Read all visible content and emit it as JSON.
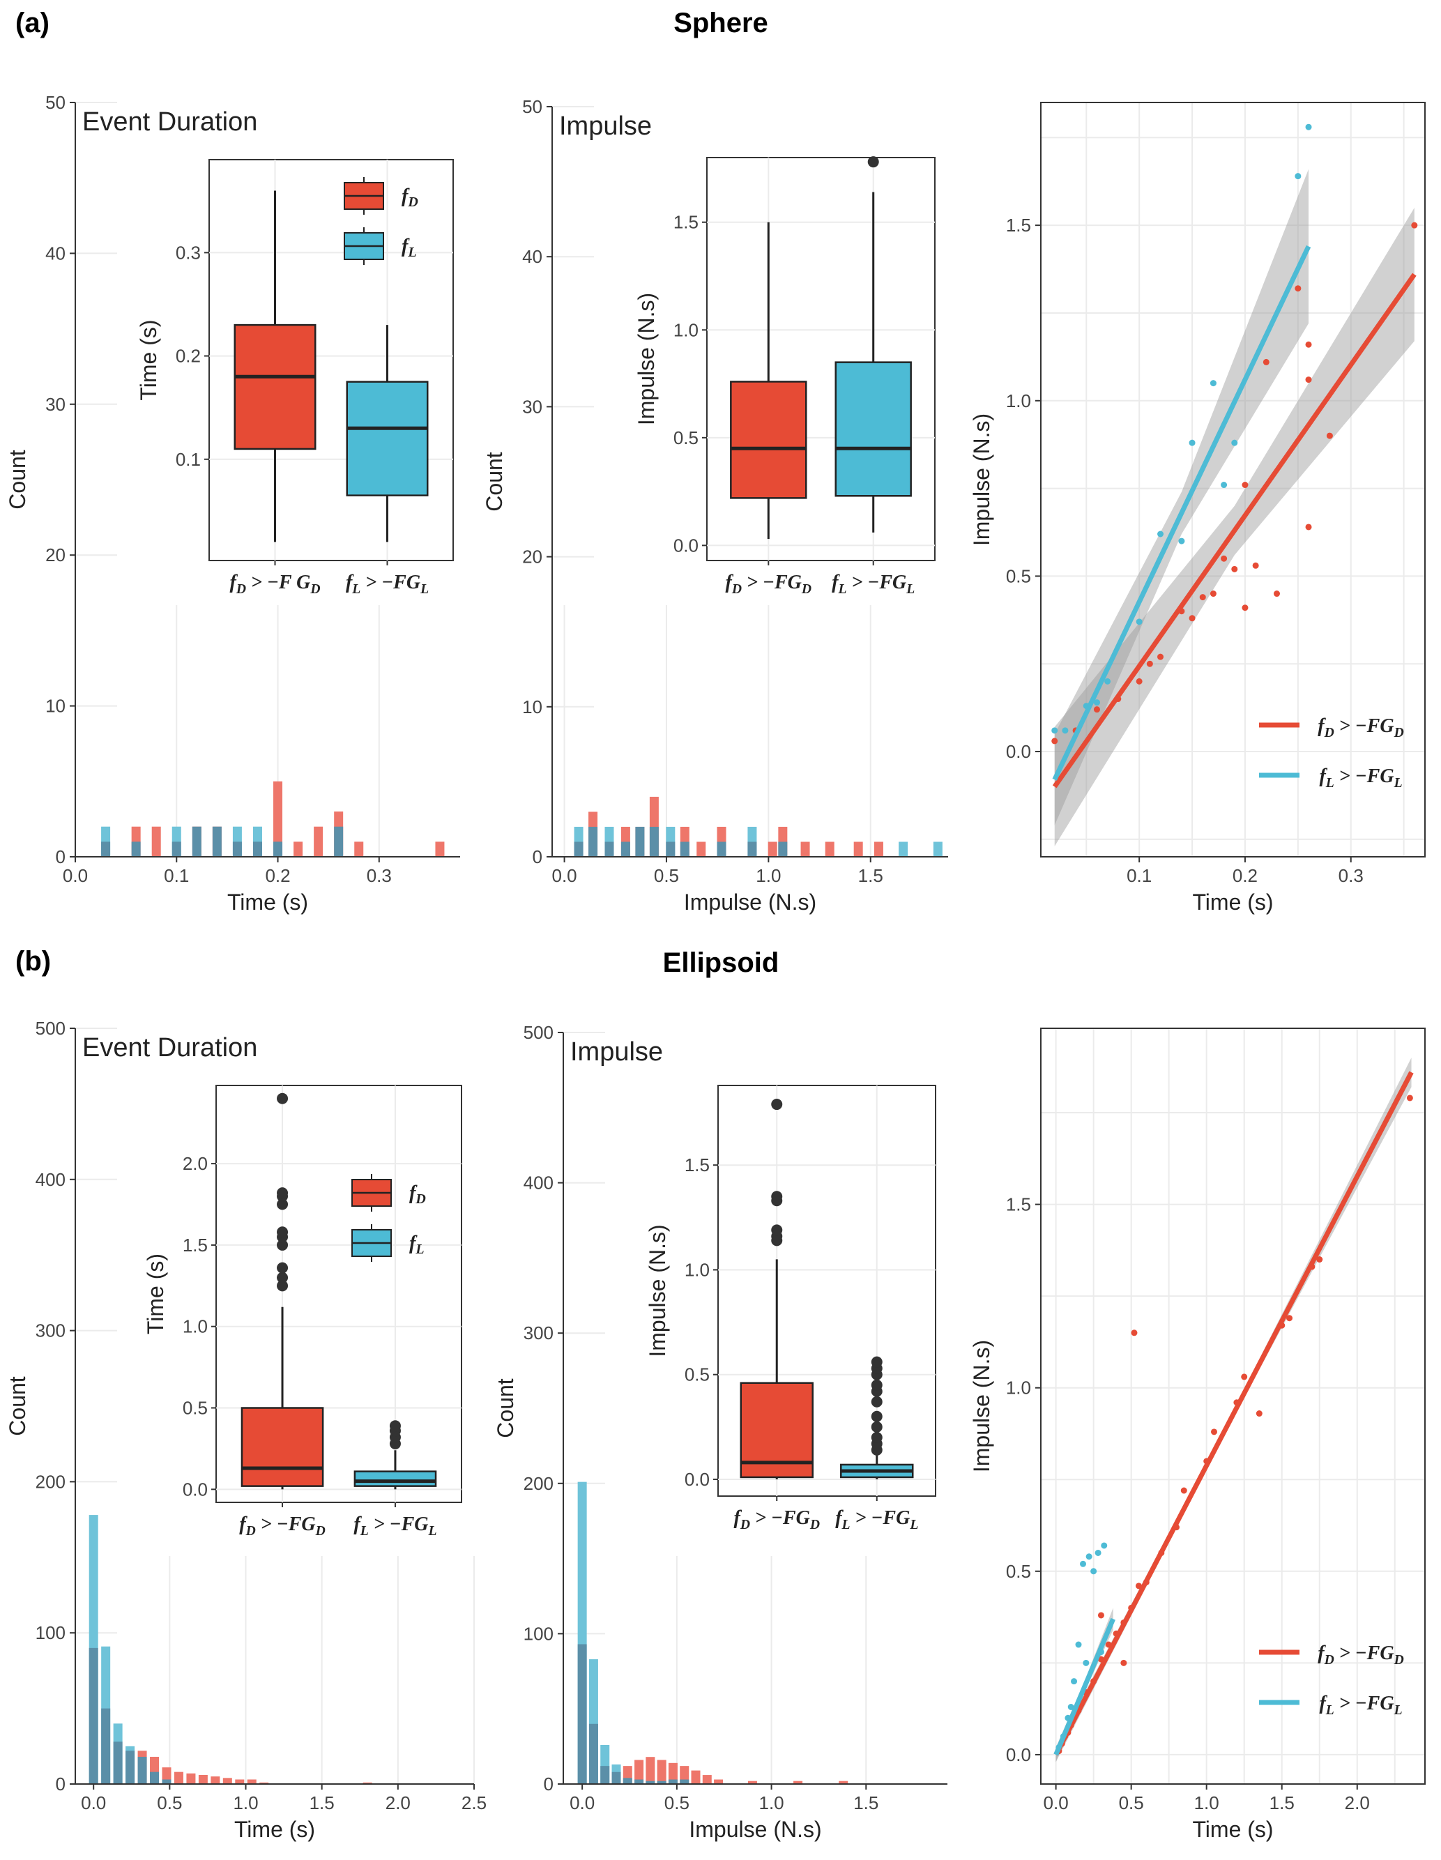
{
  "panels": [
    {
      "label": "(a)",
      "title": "Sphere",
      "histograms": [
        {
          "inset_title": "Event Duration",
          "xlabel": "Time (s)",
          "ylabel": "Count",
          "xticks": [
            "0.0",
            "0.1",
            "0.2",
            "0.3"
          ],
          "yticks": [
            "0",
            "10",
            "20",
            "30",
            "40",
            "50"
          ]
        },
        {
          "inset_title": "Impulse",
          "xlabel": "Impulse (N.s)",
          "ylabel": "Count",
          "xticks": [
            "0.0",
            "0.5",
            "1.0",
            "1.5"
          ],
          "yticks": [
            "0",
            "10",
            "20",
            "30",
            "40",
            "50"
          ]
        }
      ],
      "boxplots": [
        {
          "ylabel": "Time (s)",
          "yticks": [
            "0.1",
            "0.2",
            "0.3"
          ],
          "legend": [
            "f_D",
            "f_L"
          ],
          "categories": [
            "fD>−F GD",
            "fL>−FGL"
          ]
        },
        {
          "ylabel": "Impulse (N.s)",
          "yticks": [
            "0.0",
            "0.5",
            "1.0",
            "1.5"
          ],
          "categories": [
            "fD>−FGD",
            "fL>−FGL"
          ]
        }
      ],
      "scatter": {
        "xlabel": "Time (s)",
        "ylabel": "Impulse (N.s)",
        "xticks": [
          "0.1",
          "0.2",
          "0.3"
        ],
        "yticks": [
          "0.0",
          "0.5",
          "1.0",
          "1.5"
        ],
        "legend": [
          "fD>−FGD",
          "fL>−FGL"
        ]
      }
    },
    {
      "label": "(b)",
      "title": "Ellipsoid",
      "histograms": [
        {
          "inset_title": "Event Duration",
          "xlabel": "Time (s)",
          "ylabel": "Count",
          "xticks": [
            "0.0",
            "0.5",
            "1.0",
            "1.5",
            "2.0",
            "2.5"
          ],
          "yticks": [
            "0",
            "100",
            "200",
            "300",
            "400",
            "500"
          ]
        },
        {
          "inset_title": "Impulse",
          "xlabel": "Impulse (N.s)",
          "ylabel": "Count",
          "xticks": [
            "0.0",
            "0.5",
            "1.0",
            "1.5"
          ],
          "yticks": [
            "0",
            "100",
            "200",
            "300",
            "400",
            "500"
          ]
        }
      ],
      "boxplots": [
        {
          "ylabel": "Time (s)",
          "yticks": [
            "0.0",
            "0.5",
            "1.0",
            "1.5",
            "2.0"
          ],
          "legend": [
            "f_D",
            "f_L"
          ],
          "categories": [
            "fD>−FGD",
            "fL>−FGL"
          ]
        },
        {
          "ylabel": "Impulse (N.s)",
          "yticks": [
            "0.0",
            "0.5",
            "1.0",
            "1.5"
          ],
          "categories": [
            "fD>−FGD",
            "fL>−FGL"
          ]
        }
      ],
      "scatter": {
        "xlabel": "Time (s)",
        "ylabel": "Impulse (N.s)",
        "xticks": [
          "0.0",
          "0.5",
          "1.0",
          "1.5",
          "2.0"
        ],
        "yticks": [
          "0.0",
          "0.5",
          "1.0",
          "1.5"
        ],
        "legend": [
          "fD>−FGD",
          "fL>−FGL"
        ]
      }
    }
  ],
  "colors": {
    "drag": "#e64b35",
    "lift": "#4dbbd5",
    "drag_hist": "#ee766a",
    "lift_hist": "#6fc3d9",
    "overlap": "#5b8fa8",
    "grid": "#ebebeb",
    "band": "#999999"
  },
  "chart_data": [
    {
      "type": "bar",
      "panel": "(a) Sphere",
      "name": "Event Duration histogram",
      "xlabel": "Time (s)",
      "ylabel": "Count",
      "xlim": [
        0,
        0.38
      ],
      "ylim": [
        0,
        50
      ],
      "x": [
        0.03,
        0.06,
        0.08,
        0.1,
        0.12,
        0.14,
        0.16,
        0.18,
        0.2,
        0.22,
        0.24,
        0.26,
        0.28,
        0.36
      ],
      "series": [
        {
          "name": "fD>−FGD",
          "values": [
            1,
            2,
            2,
            1,
            2,
            2,
            1,
            1,
            5,
            1,
            2,
            3,
            1,
            1
          ]
        },
        {
          "name": "fL>−FGL",
          "values": [
            2,
            1,
            0,
            2,
            2,
            2,
            2,
            2,
            1,
            0,
            0,
            2,
            0,
            0
          ]
        }
      ]
    },
    {
      "type": "box",
      "panel": "(a) Sphere",
      "name": "Event Duration boxplot",
      "ylabel": "Time (s)",
      "categories": [
        "fD>−FGD",
        "fL>−FGL"
      ],
      "stats": [
        {
          "min": 0.02,
          "q1": 0.11,
          "median": 0.18,
          "q3": 0.23,
          "max": 0.36,
          "outliers": []
        },
        {
          "min": 0.02,
          "q1": 0.065,
          "median": 0.13,
          "q3": 0.175,
          "max": 0.23,
          "outliers": []
        }
      ]
    },
    {
      "type": "bar",
      "panel": "(a) Sphere",
      "name": "Impulse histogram",
      "xlabel": "Impulse (N.s)",
      "ylabel": "Count",
      "xlim": [
        0,
        1.88
      ],
      "ylim": [
        0,
        50
      ],
      "x": [
        0.07,
        0.14,
        0.22,
        0.3,
        0.37,
        0.44,
        0.52,
        0.59,
        0.67,
        0.77,
        0.92,
        1.02,
        1.07,
        1.18,
        1.3,
        1.44,
        1.54,
        1.66,
        1.83
      ],
      "series": [
        {
          "name": "fD>−FGD",
          "values": [
            1,
            3,
            1,
            2,
            2,
            4,
            1,
            2,
            1,
            2,
            1,
            1,
            2,
            1,
            1,
            1,
            1,
            0,
            0
          ]
        },
        {
          "name": "fL>−FGL",
          "values": [
            2,
            2,
            2,
            1,
            2,
            2,
            2,
            1,
            0,
            1,
            2,
            0,
            1,
            0,
            0,
            0,
            0,
            1,
            1
          ]
        }
      ]
    },
    {
      "type": "box",
      "panel": "(a) Sphere",
      "name": "Impulse boxplot",
      "ylabel": "Impulse (N.s)",
      "categories": [
        "fD>−FGD",
        "fL>−FGL"
      ],
      "stats": [
        {
          "min": 0.03,
          "q1": 0.22,
          "median": 0.45,
          "q3": 0.76,
          "max": 1.5,
          "outliers": []
        },
        {
          "min": 0.06,
          "q1": 0.23,
          "median": 0.45,
          "q3": 0.85,
          "max": 1.64,
          "outliers": [
            1.78
          ]
        }
      ]
    },
    {
      "type": "scatter",
      "panel": "(a) Sphere",
      "name": "Impulse vs Time",
      "xlabel": "Time (s)",
      "ylabel": "Impulse (N.s)",
      "xlim": [
        0.01,
        0.37
      ],
      "ylim": [
        -0.3,
        1.85
      ],
      "series": [
        {
          "name": "fD>−FGD",
          "points": [
            [
              0.02,
              0.03
            ],
            [
              0.04,
              0.06
            ],
            [
              0.06,
              0.12
            ],
            [
              0.08,
              0.15
            ],
            [
              0.1,
              0.2
            ],
            [
              0.11,
              0.25
            ],
            [
              0.12,
              0.27
            ],
            [
              0.14,
              0.4
            ],
            [
              0.15,
              0.38
            ],
            [
              0.16,
              0.44
            ],
            [
              0.17,
              0.45
            ],
            [
              0.18,
              0.55
            ],
            [
              0.19,
              0.52
            ],
            [
              0.2,
              0.76
            ],
            [
              0.2,
              0.41
            ],
            [
              0.21,
              0.53
            ],
            [
              0.22,
              1.11
            ],
            [
              0.23,
              0.45
            ],
            [
              0.25,
              1.32
            ],
            [
              0.26,
              1.16
            ],
            [
              0.26,
              1.06
            ],
            [
              0.26,
              0.64
            ],
            [
              0.28,
              0.9
            ],
            [
              0.36,
              1.5
            ]
          ],
          "fit": {
            "x": [
              0.02,
              0.36
            ],
            "y": [
              -0.1,
              1.36
            ]
          }
        },
        {
          "name": "fL>−FGL",
          "points": [
            [
              0.02,
              0.06
            ],
            [
              0.03,
              0.06
            ],
            [
              0.05,
              0.13
            ],
            [
              0.06,
              0.14
            ],
            [
              0.07,
              0.2
            ],
            [
              0.1,
              0.37
            ],
            [
              0.12,
              0.62
            ],
            [
              0.14,
              0.6
            ],
            [
              0.15,
              0.88
            ],
            [
              0.17,
              1.05
            ],
            [
              0.18,
              0.76
            ],
            [
              0.19,
              0.88
            ],
            [
              0.25,
              1.64
            ],
            [
              0.26,
              1.78
            ]
          ],
          "fit": {
            "x": [
              0.02,
              0.26
            ],
            "y": [
              -0.08,
              1.44
            ]
          }
        }
      ]
    },
    {
      "type": "bar",
      "panel": "(b) Ellipsoid",
      "name": "Event Duration histogram",
      "xlabel": "Time (s)",
      "ylabel": "Count",
      "xlim": [
        -0.1,
        2.5
      ],
      "ylim": [
        0,
        500
      ],
      "x": [
        0.0,
        0.08,
        0.16,
        0.24,
        0.32,
        0.4,
        0.48,
        0.56,
        0.64,
        0.72,
        0.8,
        0.88,
        0.96,
        1.04,
        1.12,
        1.8
      ],
      "series": [
        {
          "name": "fD>−FGD",
          "values": [
            90,
            50,
            28,
            22,
            22,
            18,
            11,
            8,
            7,
            6,
            5,
            4,
            3,
            3,
            1,
            1
          ]
        },
        {
          "name": "fL>−FGL",
          "values": [
            178,
            91,
            40,
            25,
            18,
            8,
            3,
            0,
            0,
            0,
            0,
            0,
            0,
            0,
            0,
            0
          ]
        }
      ]
    },
    {
      "type": "box",
      "panel": "(b) Ellipsoid",
      "name": "Event Duration boxplot",
      "ylabel": "Time (s)",
      "categories": [
        "fD>−FGD",
        "fL>−FGL"
      ],
      "stats": [
        {
          "min": 0.0,
          "q1": 0.02,
          "median": 0.13,
          "q3": 0.5,
          "max": 1.12,
          "outliers": [
            1.25,
            1.3,
            1.36,
            1.5,
            1.55,
            1.58,
            1.75,
            1.8,
            1.82,
            2.4
          ]
        },
        {
          "min": 0.0,
          "q1": 0.02,
          "median": 0.05,
          "q3": 0.11,
          "max": 0.24,
          "outliers": [
            0.28,
            0.32,
            0.36,
            0.39
          ]
        }
      ]
    },
    {
      "type": "bar",
      "panel": "(b) Ellipsoid",
      "name": "Impulse histogram",
      "xlabel": "Impulse (N.s)",
      "ylabel": "Count",
      "xlim": [
        -0.1,
        1.9
      ],
      "ylim": [
        0,
        500
      ],
      "x": [
        0.0,
        0.06,
        0.12,
        0.18,
        0.24,
        0.3,
        0.36,
        0.42,
        0.48,
        0.54,
        0.6,
        0.66,
        0.72,
        0.9,
        1.14,
        1.38
      ],
      "series": [
        {
          "name": "fD>−FGD",
          "values": [
            93,
            40,
            12,
            8,
            12,
            16,
            18,
            16,
            14,
            12,
            9,
            6,
            3,
            2,
            2,
            2
          ]
        },
        {
          "name": "fL>−FGL",
          "values": [
            201,
            83,
            26,
            13,
            4,
            3,
            2,
            2,
            3,
            3,
            0,
            0,
            0,
            0,
            0,
            0
          ]
        }
      ]
    },
    {
      "type": "box",
      "panel": "(b) Ellipsoid",
      "name": "Impulse boxplot",
      "ylabel": "Impulse (N.s)",
      "categories": [
        "fD>−FGD",
        "fL>−FGL"
      ],
      "stats": [
        {
          "min": 0.0,
          "q1": 0.01,
          "median": 0.08,
          "q3": 0.46,
          "max": 1.05,
          "outliers": [
            1.14,
            1.16,
            1.19,
            1.33,
            1.35,
            1.79
          ]
        },
        {
          "min": 0.0,
          "q1": 0.01,
          "median": 0.04,
          "q3": 0.07,
          "max": 0.12,
          "outliers": [
            0.14,
            0.17,
            0.2,
            0.25,
            0.3,
            0.37,
            0.42,
            0.45,
            0.5,
            0.53,
            0.56
          ]
        }
      ]
    },
    {
      "type": "scatter",
      "panel": "(b) Ellipsoid",
      "name": "Impulse vs Time",
      "xlabel": "Time (s)",
      "ylabel": "Impulse (N.s)",
      "xlim": [
        -0.1,
        2.45
      ],
      "ylim": [
        -0.05,
        1.9
      ],
      "series": [
        {
          "name": "fD>−FGD",
          "points": [
            [
              0.02,
              0.01
            ],
            [
              0.04,
              0.03
            ],
            [
              0.06,
              0.05
            ],
            [
              0.08,
              0.06
            ],
            [
              0.1,
              0.08
            ],
            [
              0.15,
              0.12
            ],
            [
              0.2,
              0.17
            ],
            [
              0.25,
              0.2
            ],
            [
              0.3,
              0.26
            ],
            [
              0.35,
              0.3
            ],
            [
              0.4,
              0.33
            ],
            [
              0.45,
              0.36
            ],
            [
              0.5,
              0.4
            ],
            [
              0.55,
              0.46
            ],
            [
              0.6,
              0.47
            ],
            [
              0.7,
              0.55
            ],
            [
              0.8,
              0.62
            ],
            [
              0.85,
              0.72
            ],
            [
              1.0,
              0.8
            ],
            [
              1.05,
              0.88
            ],
            [
              1.2,
              0.96
            ],
            [
              1.25,
              1.03
            ],
            [
              1.35,
              0.93
            ],
            [
              1.5,
              1.17
            ],
            [
              1.55,
              1.19
            ],
            [
              1.7,
              1.33
            ],
            [
              1.75,
              1.35
            ],
            [
              2.35,
              1.79
            ],
            [
              0.52,
              1.15
            ],
            [
              0.3,
              0.38
            ],
            [
              0.45,
              0.25
            ]
          ],
          "fit": {
            "x": [
              0.0,
              2.36
            ],
            "y": [
              0.0,
              1.86
            ]
          }
        },
        {
          "name": "fL>−FGL",
          "points": [
            [
              0.02,
              0.02
            ],
            [
              0.05,
              0.05
            ],
            [
              0.08,
              0.1
            ],
            [
              0.1,
              0.13
            ],
            [
              0.12,
              0.2
            ],
            [
              0.15,
              0.3
            ],
            [
              0.18,
              0.52
            ],
            [
              0.22,
              0.54
            ],
            [
              0.25,
              0.5
            ],
            [
              0.28,
              0.55
            ],
            [
              0.32,
              0.57
            ],
            [
              0.2,
              0.25
            ],
            [
              0.3,
              0.28
            ]
          ],
          "fit": {
            "x": [
              0.0,
              0.38
            ],
            "y": [
              0.0,
              0.37
            ]
          }
        }
      ]
    }
  ]
}
